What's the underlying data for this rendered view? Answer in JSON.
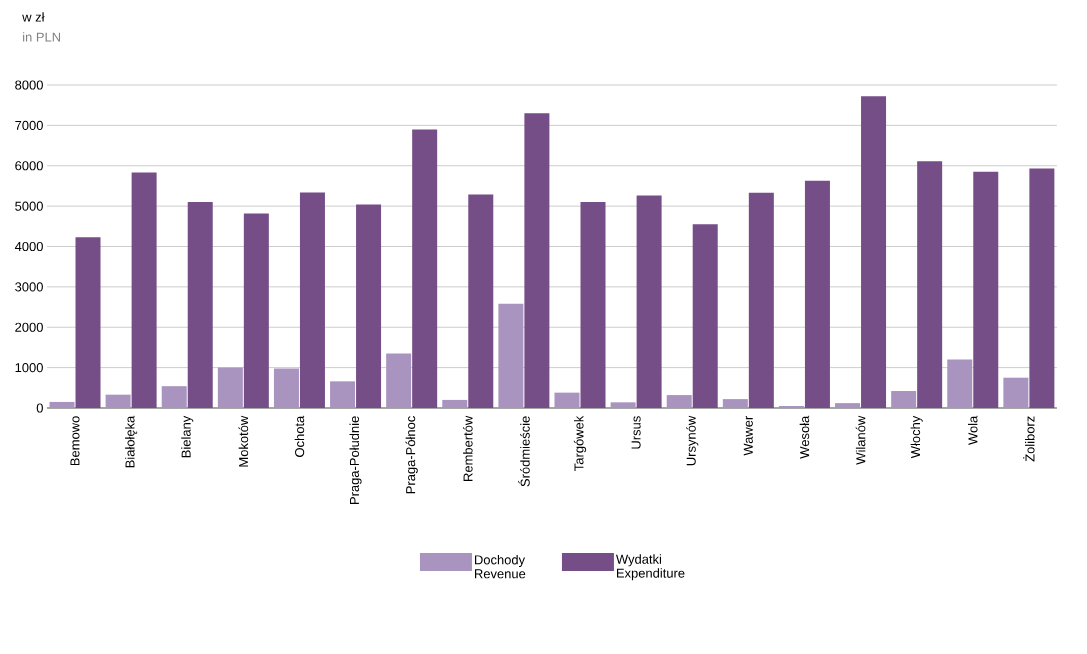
{
  "chart_data": {
    "type": "bar",
    "ylabel": "w zł",
    "subtitle": "in PLN",
    "categories": [
      "Bemowo",
      "Białołęka",
      "Bielany",
      "Mokotów",
      "Ochota",
      "Praga-Południe",
      "Praga-Północ",
      "Rembertów",
      "Śródmieście",
      "Targówek",
      "Ursus",
      "Ursynów",
      "Wawer",
      "Wesoła",
      "Wilanów",
      "Włochy",
      "Wola",
      "Żoliborz"
    ],
    "series": [
      {
        "name": "Dochody Revenue",
        "color": "#a993bf",
        "values": [
          150,
          330,
          540,
          1000,
          980,
          660,
          1350,
          200,
          2580,
          380,
          140,
          320,
          220,
          50,
          120,
          420,
          1200,
          750
        ]
      },
      {
        "name": "Wydatki Expenditure",
        "color": "#754d87",
        "values": [
          4230,
          5830,
          5100,
          4820,
          5340,
          5040,
          6900,
          5290,
          7300,
          5100,
          5260,
          4550,
          5330,
          5630,
          7720,
          6110,
          5850,
          5930
        ]
      }
    ],
    "ylim": [
      0,
      8000
    ],
    "yticks": [
      0,
      1000,
      2000,
      3000,
      4000,
      5000,
      6000,
      7000,
      8000
    ],
    "grid": "y",
    "legend": "bottom"
  }
}
